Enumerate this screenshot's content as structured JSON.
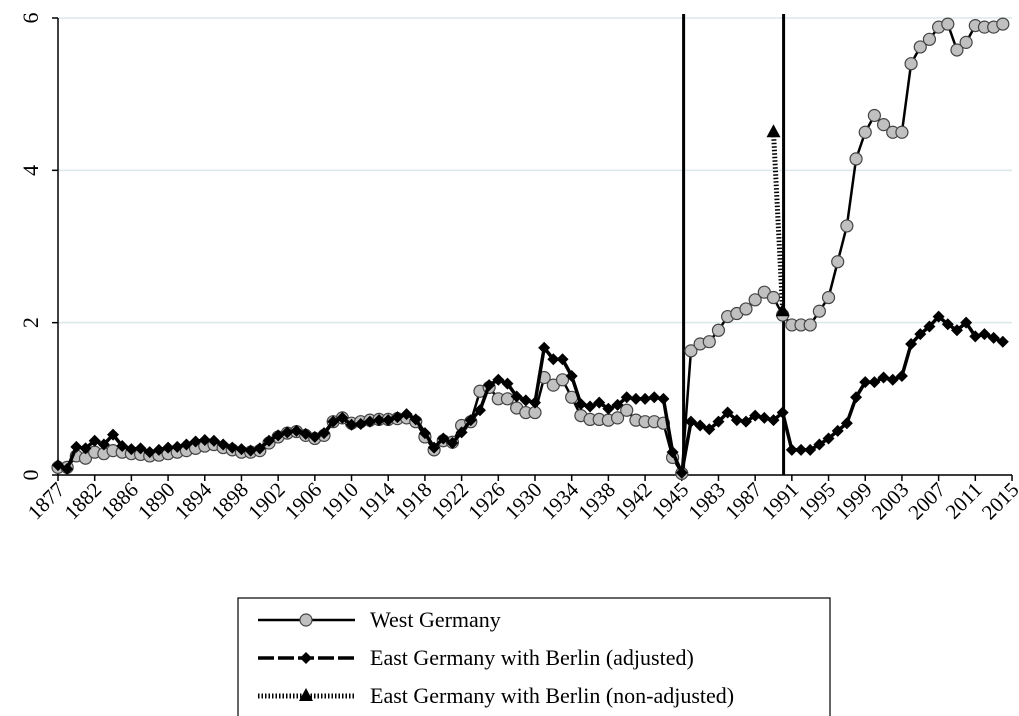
{
  "chart_data": {
    "type": "line",
    "categories": [
      "1877",
      null,
      null,
      null,
      "1882",
      null,
      null,
      null,
      "1886",
      null,
      null,
      null,
      "1890",
      null,
      null,
      null,
      "1894",
      null,
      null,
      null,
      "1898",
      null,
      null,
      null,
      "1902",
      null,
      null,
      null,
      "1906",
      null,
      null,
      null,
      "1910",
      null,
      null,
      null,
      "1914",
      null,
      null,
      null,
      "1918",
      null,
      null,
      null,
      "1922",
      null,
      null,
      null,
      "1926",
      null,
      null,
      null,
      "1930",
      null,
      null,
      null,
      "1934",
      null,
      null,
      null,
      "1938",
      null,
      null,
      null,
      "1942",
      null,
      null,
      null,
      "1945",
      null,
      null,
      null,
      "1983",
      null,
      null,
      null,
      "1987",
      null,
      null,
      null,
      "1991",
      null,
      null,
      null,
      "1995",
      null,
      null,
      null,
      "1999",
      null,
      null,
      null,
      "2003",
      null,
      null,
      null,
      "2007",
      null,
      null,
      null,
      "2011",
      null,
      null,
      null,
      "2015"
    ],
    "series": [
      {
        "name": "West Germany",
        "color": "#000000",
        "marker_color": "#c0c0c0",
        "marker": "circle",
        "line_style": "solid",
        "values": [
          0.1,
          0.1,
          0.25,
          0.22,
          0.3,
          0.28,
          0.32,
          0.3,
          0.28,
          0.27,
          0.25,
          0.26,
          0.28,
          0.3,
          0.32,
          0.35,
          0.38,
          0.4,
          0.36,
          0.33,
          0.3,
          0.3,
          0.32,
          0.42,
          0.5,
          0.55,
          0.57,
          0.52,
          0.48,
          0.52,
          0.7,
          0.75,
          0.68,
          0.7,
          0.72,
          0.73,
          0.73,
          0.74,
          0.75,
          0.7,
          0.5,
          0.33,
          0.45,
          0.43,
          0.65,
          0.7,
          1.1,
          1.15,
          1.0,
          1.0,
          0.88,
          0.82,
          0.82,
          1.28,
          1.18,
          1.25,
          1.02,
          0.78,
          0.73,
          0.73,
          0.72,
          0.75,
          0.85,
          0.72,
          0.7,
          0.7,
          0.68,
          0.23,
          0.02,
          1.63,
          1.72,
          1.75,
          1.9,
          2.08,
          2.12,
          2.18,
          2.3,
          2.4,
          2.33,
          2.1,
          1.97,
          1.97,
          1.97,
          2.15,
          2.33,
          2.8,
          3.27,
          4.15,
          4.5,
          4.72,
          4.6,
          4.5,
          4.5,
          5.4,
          5.62,
          5.72,
          5.88,
          5.92,
          5.58,
          5.68,
          5.9,
          5.88,
          5.88,
          5.92,
          null
        ]
      },
      {
        "name": "East Germany with Berlin (adjusted)",
        "color": "#000000",
        "marker_color": "#000000",
        "marker": "diamond",
        "line_style": "dashed",
        "values": [
          0.13,
          0.08,
          0.37,
          0.35,
          0.45,
          0.4,
          0.53,
          0.38,
          0.34,
          0.35,
          0.3,
          0.33,
          0.36,
          0.37,
          0.4,
          0.44,
          0.46,
          0.45,
          0.4,
          0.36,
          0.34,
          0.32,
          0.35,
          0.45,
          0.52,
          0.56,
          0.58,
          0.54,
          0.5,
          0.55,
          0.7,
          0.75,
          0.66,
          0.67,
          0.7,
          0.72,
          0.72,
          0.76,
          0.8,
          0.73,
          0.55,
          0.36,
          0.48,
          0.42,
          0.56,
          0.72,
          0.85,
          1.18,
          1.25,
          1.2,
          1.03,
          0.98,
          0.95,
          1.67,
          1.52,
          1.52,
          1.3,
          0.93,
          0.9,
          0.95,
          0.87,
          0.92,
          1.02,
          1.0,
          1.0,
          1.02,
          1.0,
          0.3,
          0.03,
          0.7,
          0.65,
          0.6,
          0.7,
          0.82,
          0.72,
          0.7,
          0.78,
          0.75,
          0.72,
          0.82,
          0.33,
          0.33,
          0.33,
          0.4,
          0.48,
          0.58,
          0.68,
          1.02,
          1.22,
          1.22,
          1.28,
          1.25,
          1.3,
          1.72,
          1.85,
          1.95,
          2.08,
          1.98,
          1.9,
          2.0,
          1.82,
          1.85,
          1.8,
          1.75,
          null
        ]
      },
      {
        "name": "East Germany with Berlin (non-adjusted)",
        "color": "#000000",
        "marker_color": "#000000",
        "marker": "triangle",
        "line_style": "dotted",
        "values": [
          null,
          null,
          null,
          null,
          null,
          null,
          null,
          null,
          null,
          null,
          null,
          null,
          null,
          null,
          null,
          null,
          null,
          null,
          null,
          null,
          null,
          null,
          null,
          null,
          null,
          null,
          null,
          null,
          null,
          null,
          null,
          null,
          null,
          null,
          null,
          null,
          null,
          null,
          null,
          null,
          null,
          null,
          null,
          null,
          null,
          null,
          null,
          null,
          null,
          null,
          null,
          null,
          null,
          null,
          null,
          null,
          null,
          null,
          null,
          null,
          null,
          null,
          null,
          null,
          null,
          null,
          null,
          null,
          null,
          null,
          null,
          null,
          null,
          null,
          null,
          null,
          null,
          null,
          4.5,
          2.15,
          null,
          null,
          null,
          null,
          null,
          null,
          null,
          null,
          null,
          null,
          null,
          null,
          null,
          null,
          null,
          null,
          null,
          null,
          null,
          null,
          null,
          null,
          null,
          null,
          null
        ]
      }
    ],
    "ylim": [
      0,
      6
    ],
    "yticks": [
      0,
      2,
      4,
      6
    ],
    "grid": true
  }
}
